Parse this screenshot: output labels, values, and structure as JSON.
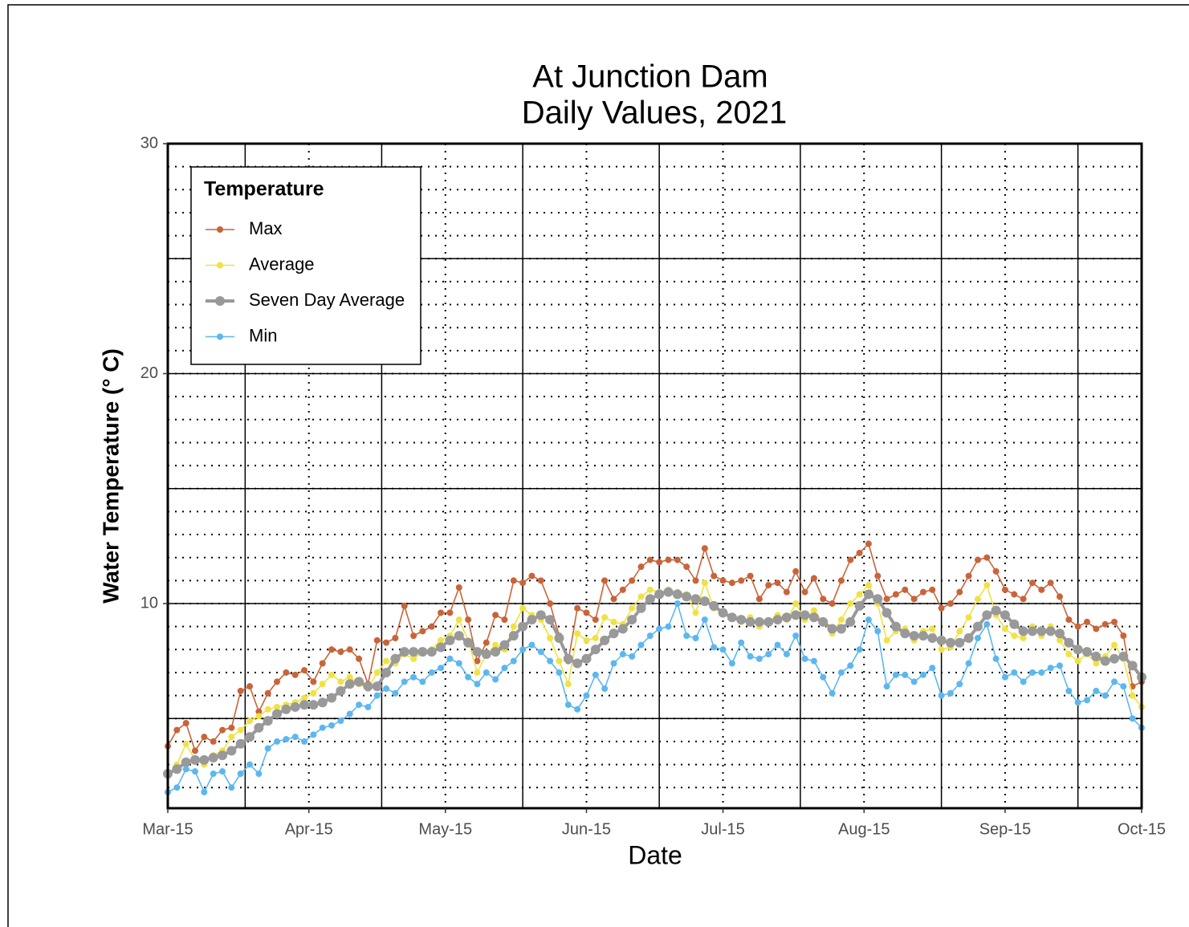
{
  "chart_data": {
    "type": "line",
    "title": [
      "At Junction Dam",
      "Daily Values, 2021"
    ],
    "x_label": "Date",
    "y_label": "Water Temperature (° C)",
    "legend_title": "Temperature",
    "legend": "top-left",
    "grid": true,
    "x": [
      "2021-03-15",
      "2021-03-17",
      "2021-03-19",
      "2021-03-21",
      "2021-03-23",
      "2021-03-25",
      "2021-03-27",
      "2021-03-29",
      "2021-03-31",
      "2021-04-02",
      "2021-04-04",
      "2021-04-06",
      "2021-04-08",
      "2021-04-10",
      "2021-04-12",
      "2021-04-14",
      "2021-04-16",
      "2021-04-18",
      "2021-04-20",
      "2021-04-22",
      "2021-04-24",
      "2021-04-26",
      "2021-04-28",
      "2021-04-30",
      "2021-05-02",
      "2021-05-04",
      "2021-05-06",
      "2021-05-08",
      "2021-05-10",
      "2021-05-12",
      "2021-05-14",
      "2021-05-16",
      "2021-05-18",
      "2021-05-20",
      "2021-05-22",
      "2021-05-24",
      "2021-05-26",
      "2021-05-28",
      "2021-05-30",
      "2021-06-01",
      "2021-06-03",
      "2021-06-05",
      "2021-06-07",
      "2021-06-09",
      "2021-06-11",
      "2021-06-13",
      "2021-06-15",
      "2021-06-17",
      "2021-06-19",
      "2021-06-21",
      "2021-06-23",
      "2021-06-25",
      "2021-06-27",
      "2021-06-29",
      "2021-07-01",
      "2021-07-03",
      "2021-07-05",
      "2021-07-07",
      "2021-07-09",
      "2021-07-11",
      "2021-07-13",
      "2021-07-15",
      "2021-07-17",
      "2021-07-19",
      "2021-07-21",
      "2021-07-23",
      "2021-07-25",
      "2021-07-27",
      "2021-07-29",
      "2021-07-31",
      "2021-08-02",
      "2021-08-04",
      "2021-08-06",
      "2021-08-08",
      "2021-08-10",
      "2021-08-12",
      "2021-08-14",
      "2021-08-16",
      "2021-08-18",
      "2021-08-20",
      "2021-08-22",
      "2021-08-24",
      "2021-08-26",
      "2021-08-28",
      "2021-08-30",
      "2021-09-01",
      "2021-09-03",
      "2021-09-05",
      "2021-09-07",
      "2021-09-09",
      "2021-09-11",
      "2021-09-13",
      "2021-09-15",
      "2021-09-17",
      "2021-09-19",
      "2021-09-21",
      "2021-09-23",
      "2021-09-25",
      "2021-09-27",
      "2021-09-29",
      "2021-10-01",
      "2021-10-03",
      "2021-10-05",
      "2021-10-07",
      "2021-10-09",
      "2021-10-11",
      "2021-10-13",
      "2021-10-15"
    ],
    "series": [
      {
        "name": "Max",
        "color": "#c9643a",
        "values": [
          3.8,
          4.5,
          4.8,
          3.6,
          4.2,
          4.0,
          4.5,
          4.6,
          6.2,
          6.4,
          5.3,
          6.1,
          6.6,
          7.0,
          6.9,
          7.1,
          6.6,
          7.4,
          8.0,
          7.9,
          8.0,
          7.6,
          6.5,
          8.4,
          8.3,
          8.5,
          9.9,
          8.6,
          8.8,
          9.0,
          9.6,
          9.6,
          10.7,
          9.3,
          7.5,
          8.3,
          9.5,
          9.3,
          11.0,
          10.9,
          11.2,
          11.0,
          10.0,
          8.6,
          7.5,
          9.8,
          9.6,
          9.3,
          11.0,
          10.2,
          10.6,
          11.0,
          11.6,
          11.9,
          11.8,
          11.9,
          11.9,
          11.6,
          11.0,
          12.4,
          11.2,
          11.0,
          10.9,
          11.0,
          11.2,
          10.2,
          10.8,
          10.9,
          10.5,
          11.4,
          10.5,
          11.1,
          10.2,
          10.0,
          11.0,
          11.9,
          12.2,
          12.6,
          11.2,
          10.2,
          10.4,
          10.6,
          10.2,
          10.5,
          10.6,
          9.8,
          10.0,
          10.5,
          11.2,
          11.9,
          12.0,
          11.4,
          10.6,
          10.4,
          10.2,
          10.9,
          10.6,
          10.9,
          10.3,
          9.3,
          9.0,
          9.2,
          8.9,
          9.1,
          9.2,
          8.6,
          6.4,
          6.6
        ],
        "size": 4
      },
      {
        "name": "Average",
        "color": "#f0e244",
        "values": [
          2.5,
          3.0,
          3.9,
          3.2,
          3.0,
          3.4,
          3.6,
          4.2,
          4.5,
          4.9,
          5.1,
          5.4,
          5.5,
          5.6,
          5.7,
          5.9,
          6.1,
          6.5,
          6.9,
          6.6,
          6.8,
          6.5,
          6.3,
          7.0,
          7.5,
          7.4,
          7.8,
          7.6,
          7.9,
          8.0,
          8.4,
          8.6,
          9.3,
          8.4,
          7.0,
          7.8,
          8.2,
          8.0,
          9.0,
          9.8,
          9.5,
          9.3,
          8.5,
          7.5,
          6.5,
          8.7,
          8.4,
          8.5,
          9.4,
          9.2,
          9.1,
          9.8,
          10.3,
          10.6,
          10.5,
          10.6,
          10.5,
          10.4,
          9.6,
          10.9,
          9.8,
          9.6,
          9.4,
          9.2,
          9.4,
          9.0,
          9.2,
          9.5,
          9.3,
          10.0,
          9.3,
          9.7,
          9.2,
          8.7,
          9.3,
          10.0,
          10.4,
          10.8,
          10.0,
          8.4,
          8.8,
          8.9,
          8.4,
          8.8,
          8.9,
          8.0,
          8.1,
          8.8,
          9.4,
          10.2,
          10.8,
          9.5,
          8.9,
          8.6,
          8.5,
          9.0,
          8.6,
          9.0,
          8.4,
          7.8,
          7.5,
          7.8,
          7.4,
          7.7,
          8.2,
          7.6,
          6.0,
          5.5
        ],
        "size": 4
      },
      {
        "name": "Seven Day Average",
        "color": "#999999",
        "values": [
          2.6,
          2.8,
          3.1,
          3.2,
          3.2,
          3.3,
          3.4,
          3.6,
          3.9,
          4.2,
          4.6,
          4.9,
          5.2,
          5.4,
          5.5,
          5.6,
          5.6,
          5.7,
          5.9,
          6.2,
          6.5,
          6.6,
          6.4,
          6.4,
          7.0,
          7.6,
          7.9,
          7.9,
          7.9,
          7.9,
          8.1,
          8.4,
          8.6,
          8.3,
          7.9,
          7.8,
          7.9,
          8.2,
          8.6,
          9.0,
          9.3,
          9.5,
          9.3,
          8.5,
          7.6,
          7.4,
          7.6,
          8.0,
          8.4,
          8.7,
          8.9,
          9.3,
          9.8,
          10.2,
          10.4,
          10.5,
          10.4,
          10.3,
          10.2,
          10.1,
          9.9,
          9.6,
          9.4,
          9.3,
          9.2,
          9.2,
          9.2,
          9.3,
          9.4,
          9.5,
          9.5,
          9.4,
          9.2,
          8.9,
          8.9,
          9.2,
          9.9,
          10.4,
          10.2,
          9.6,
          9.0,
          8.7,
          8.6,
          8.6,
          8.5,
          8.4,
          8.3,
          8.3,
          8.5,
          9.0,
          9.5,
          9.7,
          9.5,
          9.1,
          8.8,
          8.8,
          8.8,
          8.8,
          8.7,
          8.3,
          8.0,
          7.9,
          7.7,
          7.5,
          7.6,
          7.7,
          7.3,
          6.8
        ],
        "size": 6
      },
      {
        "name": "Min",
        "color": "#5db7ef",
        "values": [
          1.8,
          2.0,
          2.8,
          2.7,
          1.8,
          2.6,
          2.7,
          2.0,
          2.6,
          3.0,
          2.6,
          3.7,
          4.0,
          4.1,
          4.2,
          4.0,
          4.3,
          4.6,
          4.7,
          4.9,
          5.2,
          5.6,
          5.5,
          6.0,
          6.3,
          6.1,
          6.6,
          6.8,
          6.6,
          7.0,
          7.2,
          7.6,
          7.4,
          6.8,
          6.5,
          7.0,
          6.7,
          7.2,
          7.5,
          8.0,
          8.2,
          7.9,
          7.5,
          7.0,
          5.6,
          5.4,
          6.0,
          6.9,
          6.3,
          7.4,
          7.8,
          7.7,
          8.2,
          8.6,
          8.9,
          9.0,
          10.0,
          8.6,
          8.5,
          9.3,
          8.1,
          8.0,
          7.4,
          8.3,
          7.7,
          7.6,
          7.8,
          8.2,
          7.8,
          8.6,
          7.6,
          7.5,
          6.8,
          6.1,
          7.0,
          7.3,
          8.0,
          9.3,
          8.8,
          6.4,
          6.9,
          6.9,
          6.6,
          6.9,
          7.2,
          6.0,
          6.1,
          6.5,
          7.4,
          8.5,
          9.1,
          7.6,
          6.8,
          7.0,
          6.6,
          7.0,
          7.0,
          7.2,
          7.3,
          6.2,
          5.7,
          5.8,
          6.2,
          6.0,
          6.6,
          6.4,
          5.0,
          4.6
        ],
        "size": 4
      }
    ],
    "xlim": [
      "2021-03-15",
      "2021-10-15"
    ],
    "xticks": [
      {
        "value": "2021-03-15",
        "label": "Mar-15"
      },
      {
        "value": "2021-04-15",
        "label": "Apr-15"
      },
      {
        "value": "2021-05-15",
        "label": "May-15"
      },
      {
        "value": "2021-06-15",
        "label": "Jun-15"
      },
      {
        "value": "2021-07-15",
        "label": "Jul-15"
      },
      {
        "value": "2021-08-15",
        "label": "Aug-15"
      },
      {
        "value": "2021-09-15",
        "label": "Sep-15"
      },
      {
        "value": "2021-10-15",
        "label": "Oct-15"
      }
    ],
    "ylim": [
      1.1,
      30
    ],
    "yticks": [
      10,
      20,
      30
    ]
  }
}
